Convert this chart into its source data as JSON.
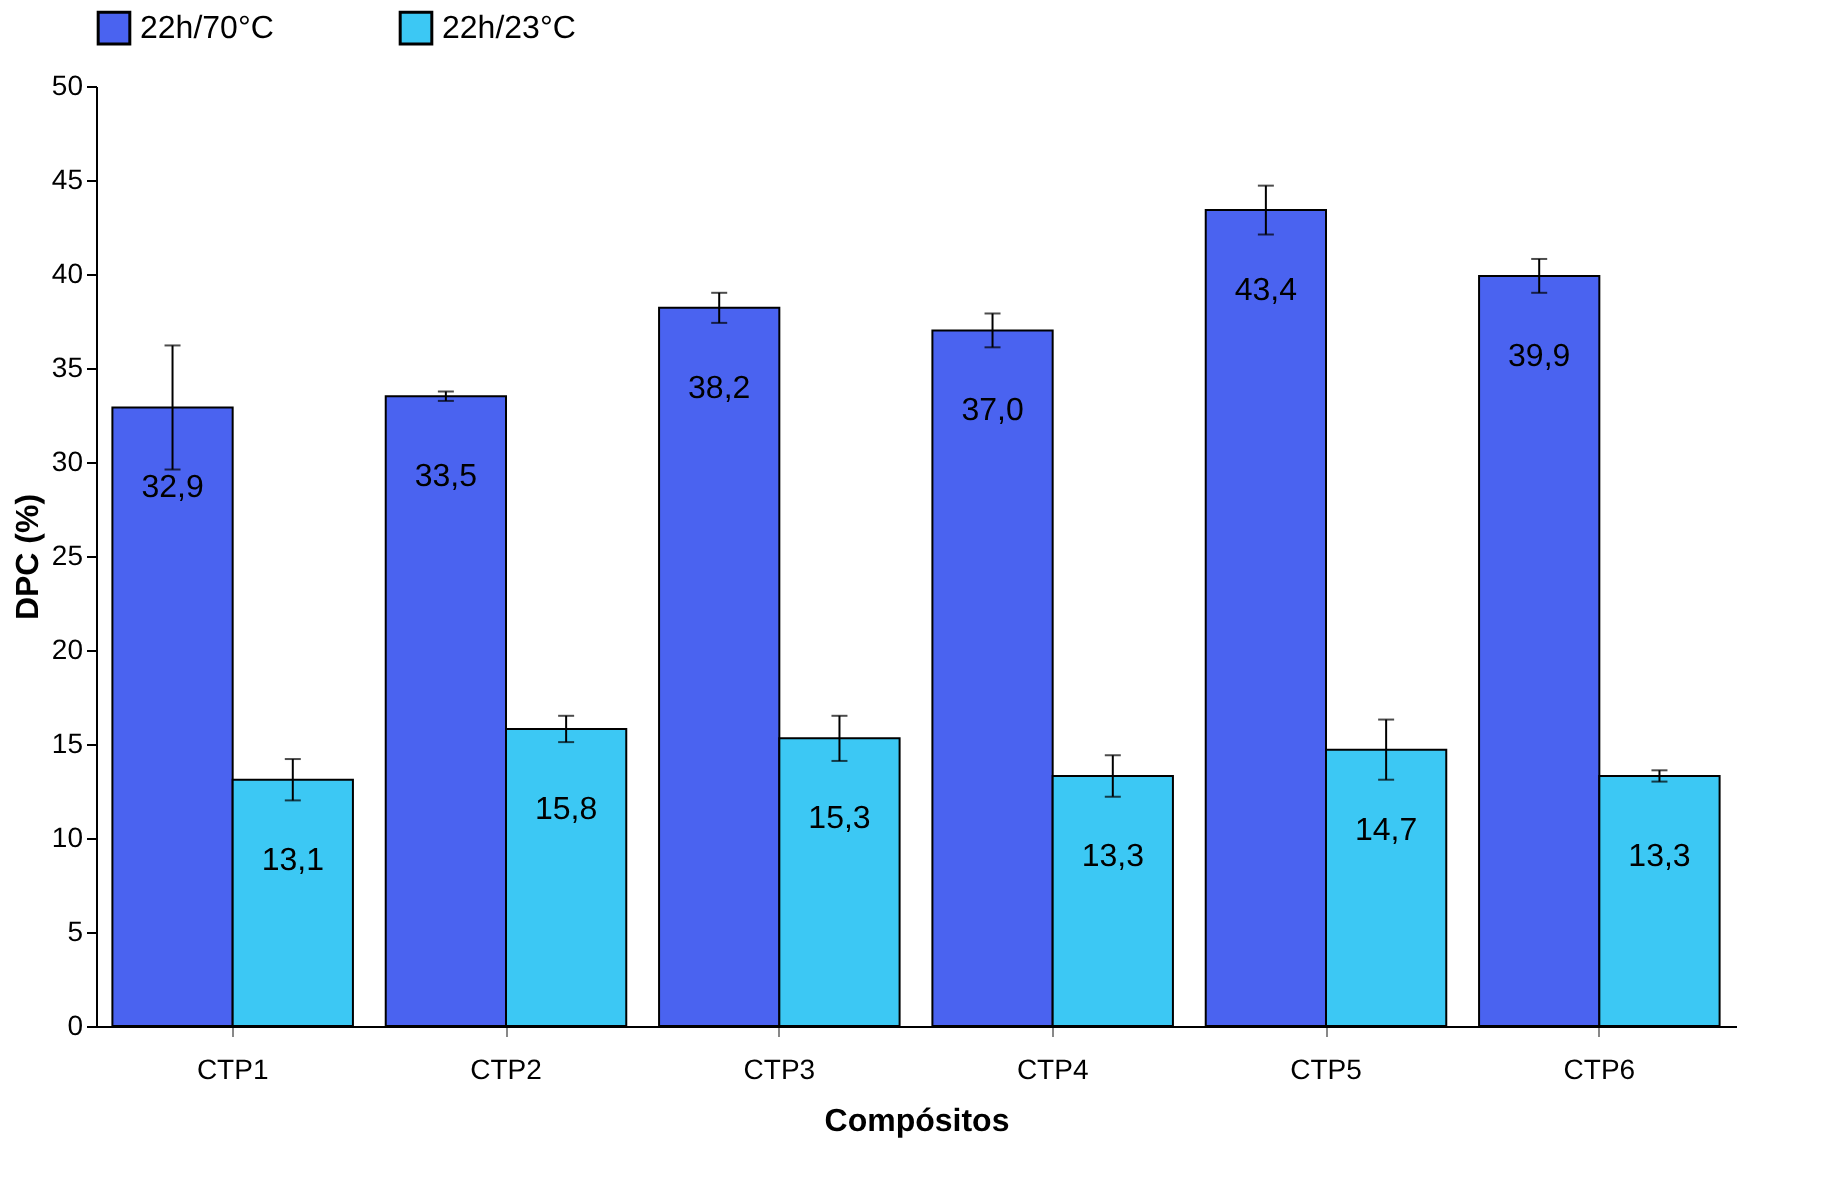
{
  "chart_data": {
    "type": "bar",
    "xlabel": "Compósitos",
    "ylabel": "DPC (%)",
    "categories": [
      "CTP1",
      "CTP2",
      "CTP3",
      "CTP4",
      "CTP5",
      "CTP6"
    ],
    "series": [
      {
        "name": "22h/70°C",
        "color": "#4a63f0",
        "values": [
          32.9,
          33.5,
          38.2,
          37.0,
          43.4,
          39.9
        ],
        "errors": [
          3.3,
          0.25,
          0.8,
          0.9,
          1.3,
          0.9
        ],
        "value_labels": [
          "32,9",
          "33,5",
          "38,2",
          "37,0",
          "43,4",
          "39,9"
        ]
      },
      {
        "name": "22h/23°C",
        "color": "#3cc8f4",
        "values": [
          13.1,
          15.8,
          15.3,
          13.3,
          14.7,
          13.3
        ],
        "errors": [
          1.1,
          0.7,
          1.2,
          1.1,
          1.6,
          0.3
        ],
        "value_labels": [
          "13,1",
          "15,8",
          "15,3",
          "13,3",
          "14,7",
          "13,3"
        ]
      }
    ],
    "ylim": [
      0,
      50
    ],
    "yticks": [
      0,
      5,
      10,
      15,
      20,
      25,
      30,
      35,
      40,
      45,
      50
    ],
    "grid": false,
    "legend": "top"
  }
}
